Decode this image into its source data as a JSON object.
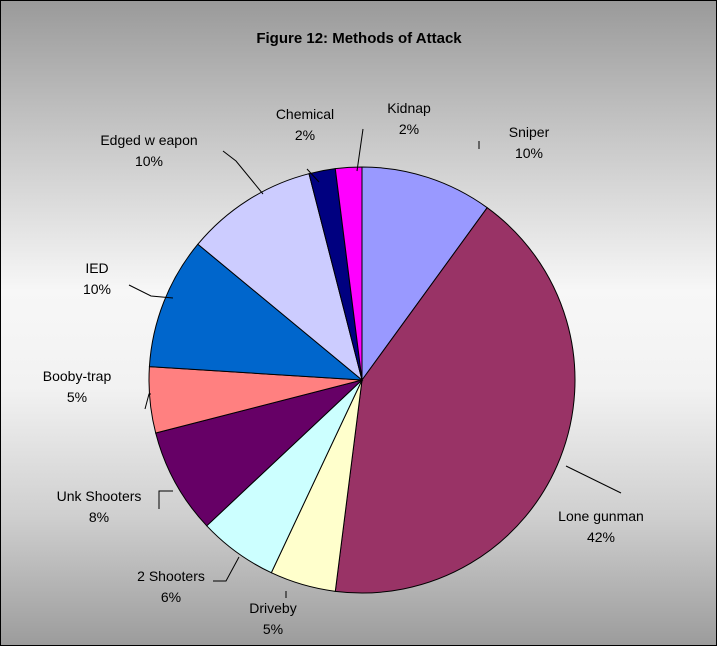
{
  "chart_data": {
    "type": "pie",
    "title": "Figure 12: Methods of Attack",
    "start_angle_deg": 0,
    "direction": "clockwise",
    "slices": [
      {
        "label": "Sniper",
        "value": 10,
        "percent_label": "10%",
        "color": "#9999ff"
      },
      {
        "label": "Lone gunman",
        "value": 42,
        "percent_label": "42%",
        "color": "#993366"
      },
      {
        "label": "Driveby",
        "value": 5,
        "percent_label": "5%",
        "color": "#ffffcc"
      },
      {
        "label": "2 Shooters",
        "value": 6,
        "percent_label": "6%",
        "color": "#ccffff"
      },
      {
        "label": "Unk Shooters",
        "value": 8,
        "percent_label": "8%",
        "color": "#660066"
      },
      {
        "label": "Booby-trap",
        "value": 5,
        "percent_label": "5%",
        "color": "#ff8080"
      },
      {
        "label": "IED",
        "value": 10,
        "percent_label": "10%",
        "color": "#0066cc"
      },
      {
        "label": "Edged w eapon",
        "value": 10,
        "percent_label": "10%",
        "color": "#ccccff"
      },
      {
        "label": "Chemical",
        "value": 2,
        "percent_label": "2%",
        "color": "#000080"
      },
      {
        "label": "Kidnap",
        "value": 2,
        "percent_label": "2%",
        "color": "#ff00ff"
      }
    ],
    "legend": "none"
  }
}
